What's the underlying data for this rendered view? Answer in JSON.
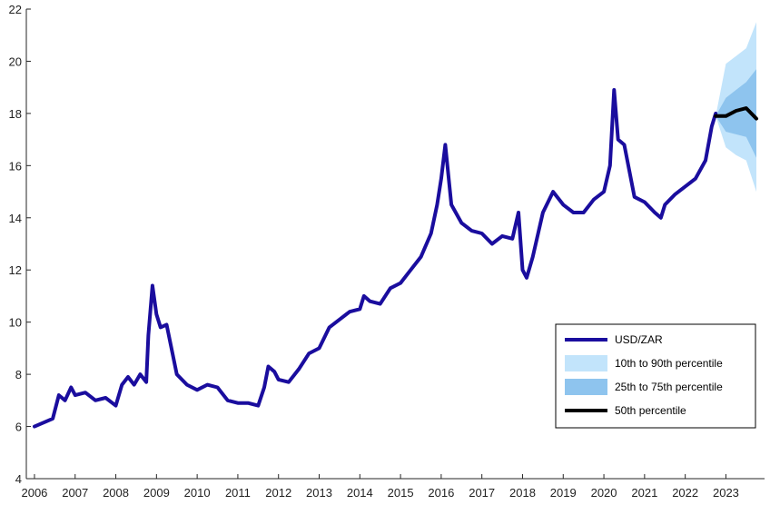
{
  "chart_data": {
    "type": "line",
    "title": "",
    "xlabel": "",
    "ylabel": "",
    "xlim": [
      2005.8,
      2023.95
    ],
    "ylim": [
      4,
      22
    ],
    "x_ticks": [
      2006,
      2007,
      2008,
      2009,
      2010,
      2011,
      2012,
      2013,
      2014,
      2015,
      2016,
      2017,
      2018,
      2019,
      2020,
      2021,
      2022,
      2023
    ],
    "y_ticks": [
      4,
      6,
      8,
      10,
      12,
      14,
      16,
      18,
      20,
      22
    ],
    "grid": false,
    "legend_position": "bottom-right",
    "series": [
      {
        "name": "USD/ZAR",
        "color": "#1a0d9e",
        "x": [
          2006.0,
          2006.15,
          2006.3,
          2006.45,
          2006.6,
          2006.75,
          2006.9,
          2007.0,
          2007.25,
          2007.5,
          2007.75,
          2008.0,
          2008.15,
          2008.3,
          2008.45,
          2008.6,
          2008.75,
          2008.8,
          2008.9,
          2009.0,
          2009.1,
          2009.25,
          2009.5,
          2009.75,
          2010.0,
          2010.25,
          2010.5,
          2010.75,
          2011.0,
          2011.25,
          2011.5,
          2011.65,
          2011.75,
          2011.9,
          2012.0,
          2012.25,
          2012.5,
          2012.75,
          2013.0,
          2013.25,
          2013.5,
          2013.75,
          2014.0,
          2014.1,
          2014.25,
          2014.5,
          2014.75,
          2015.0,
          2015.25,
          2015.5,
          2015.75,
          2015.9,
          2016.0,
          2016.1,
          2016.25,
          2016.5,
          2016.75,
          2017.0,
          2017.25,
          2017.5,
          2017.75,
          2017.9,
          2018.0,
          2018.1,
          2018.25,
          2018.5,
          2018.75,
          2019.0,
          2019.25,
          2019.5,
          2019.75,
          2020.0,
          2020.15,
          2020.25,
          2020.35,
          2020.5,
          2020.75,
          2021.0,
          2021.25,
          2021.4,
          2021.5,
          2021.75,
          2022.0,
          2022.25,
          2022.5,
          2022.65,
          2022.75
        ],
        "values": [
          6.0,
          6.1,
          6.2,
          6.3,
          7.2,
          7.0,
          7.5,
          7.2,
          7.3,
          7.0,
          7.1,
          6.8,
          7.6,
          7.9,
          7.6,
          8.0,
          7.7,
          9.5,
          11.4,
          10.3,
          9.8,
          9.9,
          8.0,
          7.6,
          7.4,
          7.6,
          7.5,
          7.0,
          6.9,
          6.9,
          6.8,
          7.5,
          8.3,
          8.1,
          7.8,
          7.7,
          8.2,
          8.8,
          9.0,
          9.8,
          10.1,
          10.4,
          10.5,
          11.0,
          10.8,
          10.7,
          11.3,
          11.5,
          12.0,
          12.5,
          13.4,
          14.5,
          15.5,
          16.8,
          14.5,
          13.8,
          13.5,
          13.4,
          13.0,
          13.3,
          13.2,
          14.2,
          12.0,
          11.7,
          12.5,
          14.2,
          15.0,
          14.5,
          14.2,
          14.2,
          14.7,
          15.0,
          16.0,
          18.9,
          17.0,
          16.8,
          14.8,
          14.6,
          14.2,
          14.0,
          14.5,
          14.9,
          15.2,
          15.5,
          16.2,
          17.5,
          18.0
        ]
      },
      {
        "name": "10th to 90th percentile",
        "color": "#c2e4fb",
        "x": [
          2022.75,
          2023.0,
          2023.25,
          2023.5,
          2023.75
        ],
        "low": [
          17.9,
          16.7,
          16.4,
          16.2,
          15.0
        ],
        "high": [
          17.9,
          19.9,
          20.2,
          20.5,
          21.5
        ]
      },
      {
        "name": "25th to 75th percentile",
        "color": "#8ec4ee",
        "x": [
          2022.75,
          2023.0,
          2023.25,
          2023.5,
          2023.75
        ],
        "low": [
          17.9,
          17.3,
          17.2,
          17.1,
          16.3
        ],
        "high": [
          17.9,
          18.6,
          18.9,
          19.2,
          19.7
        ]
      },
      {
        "name": "50th percentile",
        "color": "#000000",
        "x": [
          2022.75,
          2023.0,
          2023.25,
          2023.5,
          2023.75
        ],
        "values": [
          17.9,
          17.9,
          18.1,
          18.2,
          17.8
        ]
      }
    ]
  }
}
